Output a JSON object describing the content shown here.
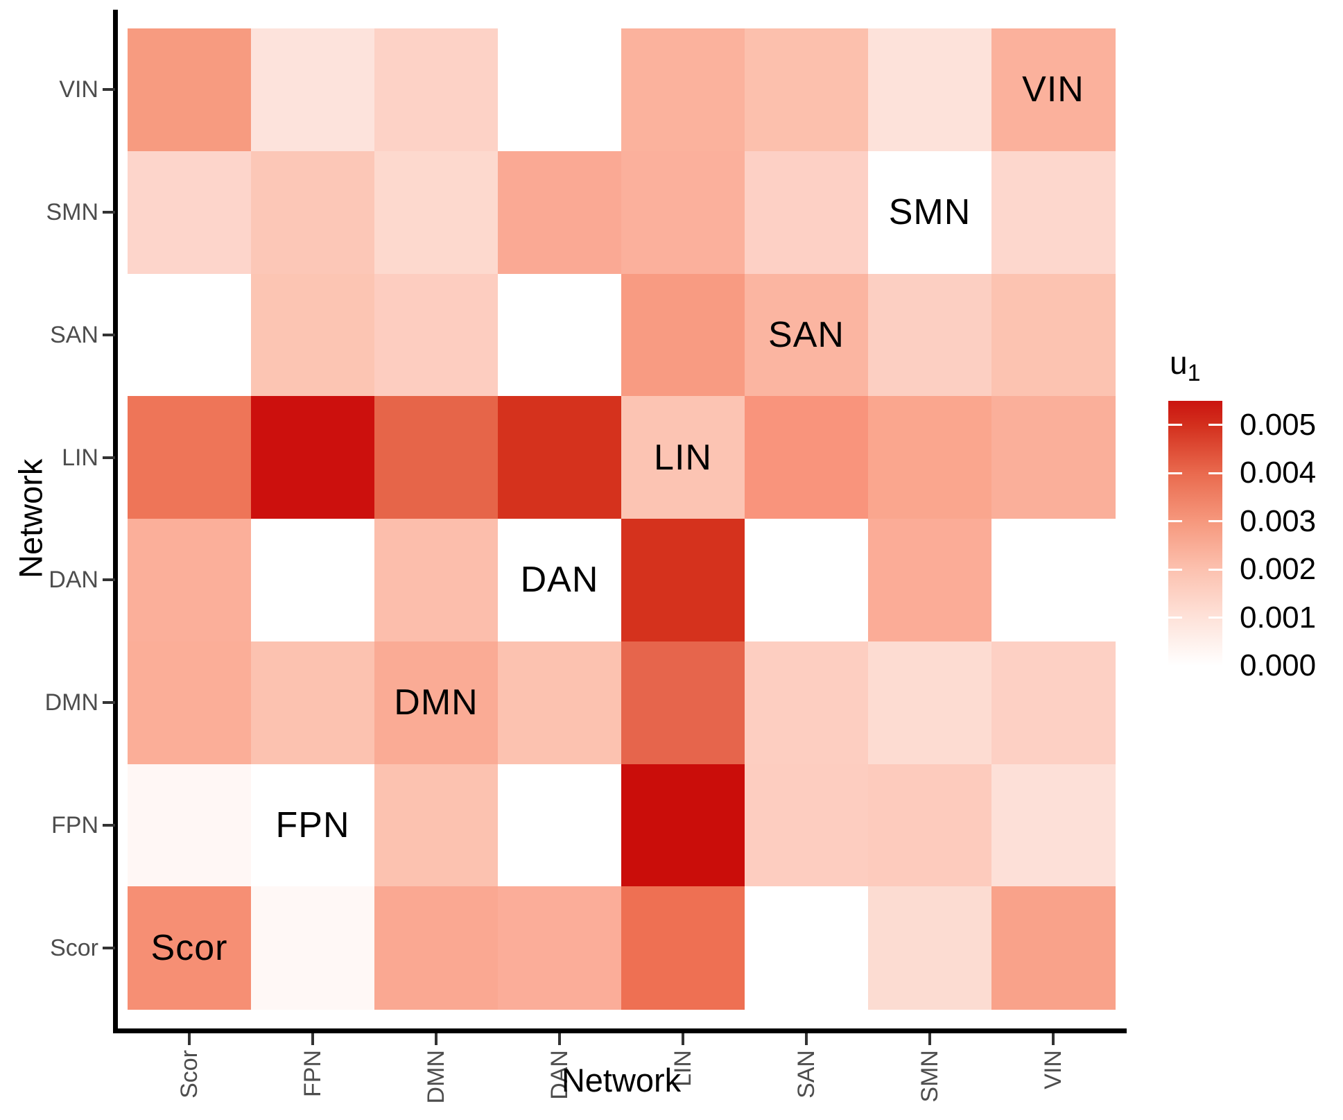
{
  "chart_data": {
    "type": "heatmap",
    "xlabel": "Network",
    "ylabel": "Network",
    "x_categories": [
      "Scor",
      "FPN",
      "DMN",
      "DAN",
      "LIN",
      "SAN",
      "SMN",
      "VIN"
    ],
    "y_categories_top_to_bottom": [
      "VIN",
      "SMN",
      "SAN",
      "LIN",
      "DAN",
      "DMN",
      "FPN",
      "Scor"
    ],
    "diagonal_cell_labels": [
      "Scor",
      "FPN",
      "DMN",
      "DAN",
      "LIN",
      "SAN",
      "SMN",
      "VIN"
    ],
    "values_u1_rows_top_to_bottom": [
      [
        0.003,
        0.001,
        0.0016,
        0.0,
        0.0024,
        0.002,
        0.001,
        0.0024
      ],
      [
        0.0015,
        0.0018,
        0.0013,
        0.0026,
        0.0024,
        0.0016,
        0.0,
        0.0014
      ],
      [
        0.0,
        0.0019,
        0.0017,
        0.0,
        0.003,
        0.0023,
        0.0016,
        0.0019
      ],
      [
        0.0039,
        0.0054,
        0.0041,
        0.005,
        0.0019,
        0.0031,
        0.0027,
        0.0025
      ],
      [
        0.0025,
        0.0,
        0.0021,
        0.0,
        0.005,
        0.0,
        0.0025,
        0.0
      ],
      [
        0.0025,
        0.0019,
        0.0026,
        0.0019,
        0.0041,
        0.0016,
        0.0012,
        0.0016
      ],
      [
        0.0002,
        0.0,
        0.0019,
        0.0,
        0.0055,
        0.0017,
        0.0017,
        0.0011
      ],
      [
        0.0032,
        0.0002,
        0.0027,
        0.0025,
        0.004,
        0.0,
        0.0012,
        0.0028
      ]
    ],
    "cell_colors_rows_top_to_bottom": [
      [
        "#F79B80",
        "#FDE3DC",
        "#FDD2C6",
        "#FFFFFF",
        "#FBB29D",
        "#FCC0AD",
        "#FDE2DA",
        "#FBB19C"
      ],
      [
        "#FDD5CB",
        "#FCC7B7",
        "#FDD9CE",
        "#FAA994",
        "#FBB09C",
        "#FDD0C5",
        "#FFFFFF",
        "#FDD7CD"
      ],
      [
        "#FFFFFF",
        "#FCC5B3",
        "#FDCDC0",
        "#FFFFFF",
        "#F89B82",
        "#FBB5A1",
        "#FCCFC2",
        "#FCC3B1"
      ],
      [
        "#EE7558",
        "#CC100D",
        "#E66549",
        "#D5321D",
        "#FCC4B3",
        "#F9947C",
        "#FAA68E",
        "#FAAF9A"
      ],
      [
        "#FBAF9A",
        "#FFFFFF",
        "#FCBEAC",
        "#FFFFFF",
        "#D5321D",
        "#FFFFFF",
        "#FBAC97",
        "#FFFFFF"
      ],
      [
        "#FBAE98",
        "#FCC2B0",
        "#FAAB95",
        "#FCC2B0",
        "#E6654C",
        "#FDCEC1",
        "#FDDCD2",
        "#FDD0C4"
      ],
      [
        "#FFF7F5",
        "#FFFFFF",
        "#FCC2B0",
        "#FFFFFF",
        "#CA0D0A",
        "#FDCDC0",
        "#FDCBBD",
        "#FDE0D8"
      ],
      [
        "#F68F74",
        "#FFF8F6",
        "#FAA892",
        "#FBAD99",
        "#EE7053",
        "#FFFFFF",
        "#FCDCD2",
        "#F9A28A"
      ]
    ],
    "legend": {
      "title_base": "u",
      "title_sub": "1",
      "tick_labels": [
        "0.005",
        "0.004",
        "0.003",
        "0.002",
        "0.001",
        "0.000"
      ],
      "tick_values": [
        0.005,
        0.004,
        0.003,
        0.002,
        0.001,
        0.0
      ],
      "value_max": 0.0055,
      "gradient_stops_bottom_to_top": [
        {
          "color": "#FFFFFF",
          "pos": 0
        },
        {
          "color": "#FEE2D9",
          "pos": 18.2
        },
        {
          "color": "#FCC1AF",
          "pos": 36.4
        },
        {
          "color": "#F6987D",
          "pos": 54.5
        },
        {
          "color": "#E96A4E",
          "pos": 72.7
        },
        {
          "color": "#D32F1D",
          "pos": 90.9
        },
        {
          "color": "#CA1410",
          "pos": 100
        }
      ],
      "legend_position": "right"
    },
    "style": {
      "axis_line_color": "#000000",
      "tick_mark_color": "#333333",
      "tick_label_color": "#4D4D4D",
      "background": "#FFFFFF",
      "grid": "off"
    }
  }
}
